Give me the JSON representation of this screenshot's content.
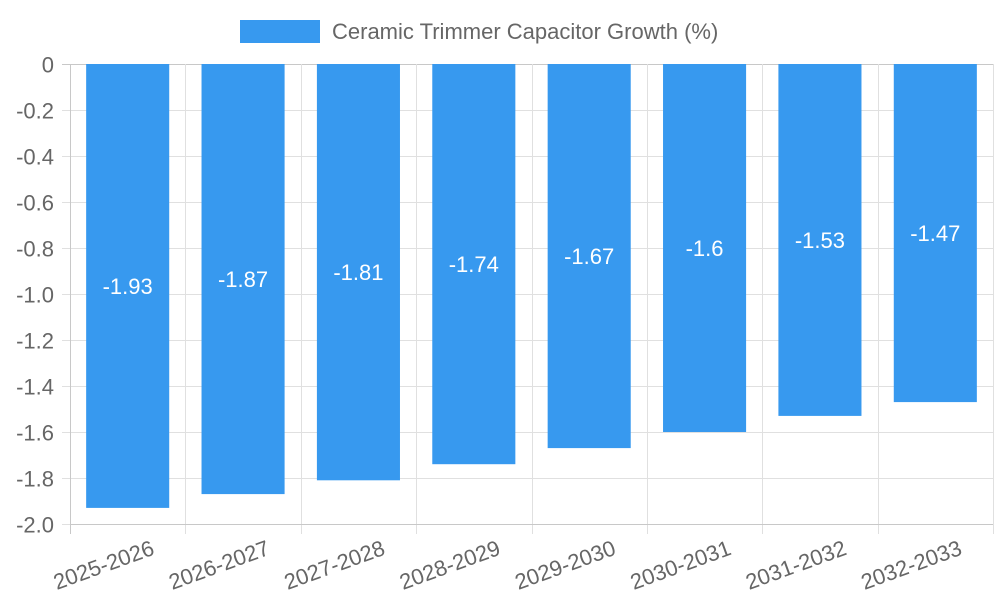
{
  "chart_data": {
    "type": "bar",
    "title": "",
    "categories": [
      "2025-2026",
      "2026-2027",
      "2027-2028",
      "2028-2029",
      "2029-2030",
      "2030-2031",
      "2031-2032",
      "2032-2033"
    ],
    "series": [
      {
        "name": "Ceramic Trimmer Capacitor Growth (%)",
        "values": [
          -1.93,
          -1.87,
          -1.81,
          -1.74,
          -1.67,
          -1.6,
          -1.53,
          -1.47
        ],
        "labels": [
          "-1.93",
          "-1.87",
          "-1.81",
          "-1.74",
          "-1.67",
          "-1.6",
          "-1.53",
          "-1.47"
        ]
      }
    ],
    "y_ticks": [
      "0",
      "-0.2",
      "-0.4",
      "-0.6",
      "-0.8",
      "-1.0",
      "-1.2",
      "-1.4",
      "-1.6",
      "-1.8",
      "-2.0"
    ],
    "y_tick_values": [
      0,
      -0.2,
      -0.4,
      -0.6,
      -0.8,
      -1.0,
      -1.2,
      -1.4,
      -1.6,
      -1.8,
      -2.0
    ],
    "ylim": [
      -2.0,
      0
    ],
    "xlabel": "",
    "ylabel": "",
    "grid": true,
    "legend_position": "top-center",
    "colors": {
      "bar": "#3799ef",
      "grid": "#e0e0e0",
      "axis": "#c8c8c8",
      "text": "#666666",
      "data_label": "#ffffff"
    }
  }
}
